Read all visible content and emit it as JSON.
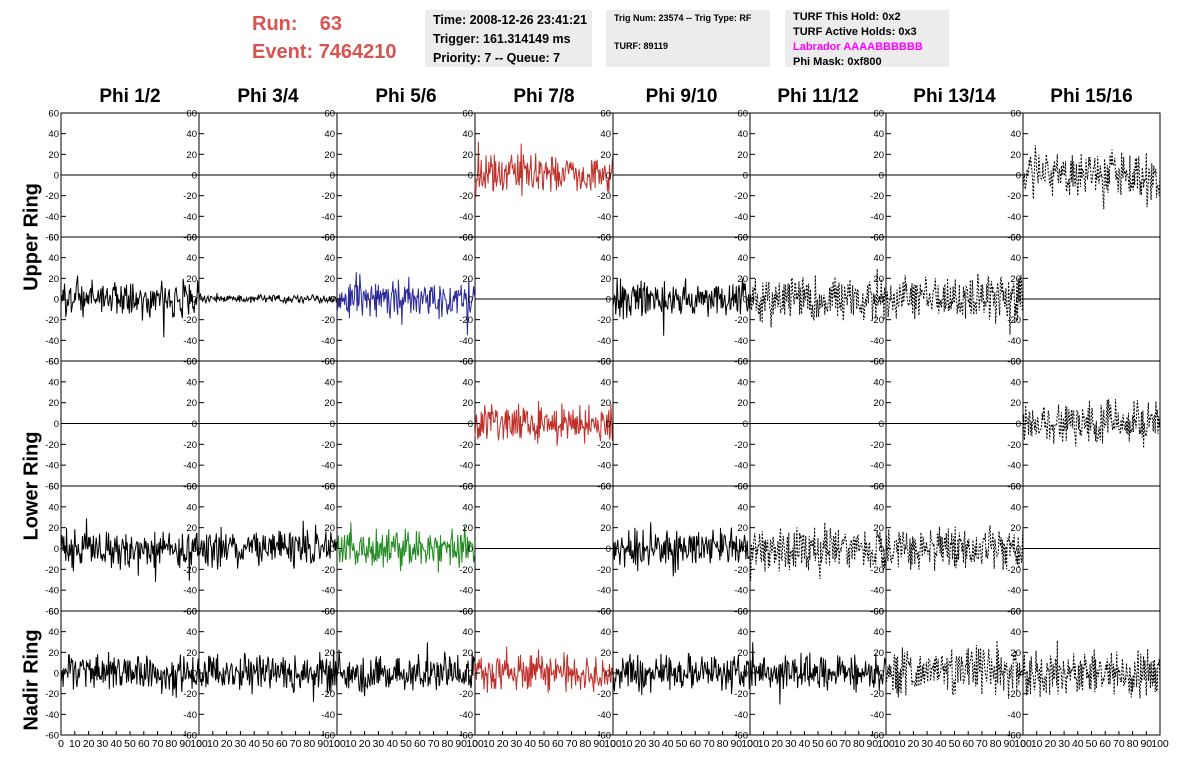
{
  "run": {
    "run_label": "Run:",
    "run_value": "63",
    "event_label": "Event:",
    "event_value": "7464210"
  },
  "time_box": {
    "time": "Time: 2008-12-26 23:41:21",
    "trigger": "Trigger: 161.314149 ms",
    "priority": "Priority: 7 -- Queue: 7"
  },
  "trig_box": {
    "trig": "Trig Num: 23574 -- Trig Type: RF",
    "turf": "TURF: 89119"
  },
  "turf_box": {
    "hold": "TURF This Hold: 0x2",
    "active": "TURF Active Holds: 0x3",
    "labrador": "Labrador AAAABBBBBB",
    "mask": "Phi Mask: 0xf800"
  },
  "colors": {
    "run_text": "#d9534f",
    "labrador_text": "#ff00ff",
    "red_trace": "#c0302a",
    "blue_trace": "#2a2a9a",
    "green_trace": "#228b22",
    "black_trace": "#000000"
  },
  "chart_data": {
    "type": "line",
    "phi_labels": [
      "Phi 1/2",
      "Phi 3/4",
      "Phi 5/6",
      "Phi 7/8",
      "Phi 9/10",
      "Phi 11/12",
      "Phi 13/14",
      "Phi 15/16"
    ],
    "ring_labels": [
      "Upper Ring",
      "Lower Ring",
      "Nadir Ring"
    ],
    "x_range": [
      0,
      100
    ],
    "x_ticks": [
      "0",
      "10",
      "20",
      "30",
      "40",
      "50",
      "60",
      "70",
      "80",
      "90",
      "100"
    ],
    "y_range": [
      -60,
      60
    ],
    "y_ticks": [
      "60",
      "40",
      "20",
      "0",
      "-20",
      "-40",
      "-60"
    ],
    "grid": false,
    "panels": [
      [
        "flat",
        "flat",
        "flat",
        "red",
        "flat",
        "flat",
        "flat",
        "dashed"
      ],
      [
        "black",
        "black-small",
        "blue",
        "flat",
        "black",
        "dashed",
        "dashed",
        "flat"
      ],
      [
        "flat",
        "flat",
        "flat",
        "red",
        "flat",
        "flat",
        "flat",
        "dashed"
      ],
      [
        "black",
        "black",
        "green",
        "flat",
        "black",
        "dashed",
        "dashed",
        "flat"
      ],
      [
        "black",
        "black",
        "black",
        "red",
        "black",
        "black",
        "dashed",
        "dashed"
      ]
    ]
  }
}
